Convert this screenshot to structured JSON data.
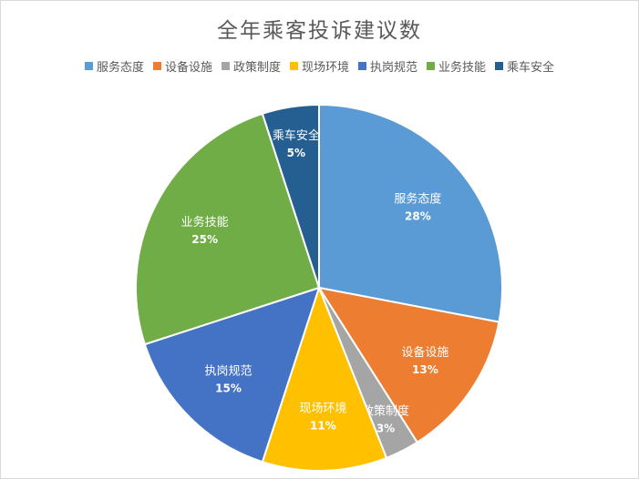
{
  "chart_data": {
    "type": "pie",
    "title": "全年乘客投诉建议数",
    "legend_position": "top",
    "slices": [
      {
        "name": "服务态度",
        "value": 28,
        "label": "28%",
        "color": "#5b9bd5"
      },
      {
        "name": "设备设施",
        "value": 13,
        "label": "13%",
        "color": "#ed7d31"
      },
      {
        "name": "政策制度",
        "value": 3,
        "label": "3%",
        "color": "#a5a5a5"
      },
      {
        "name": "现场环境",
        "value": 11,
        "label": "11%",
        "color": "#ffc000"
      },
      {
        "name": "执岗规范",
        "value": 15,
        "label": "15%",
        "color": "#4472c4"
      },
      {
        "name": "业务技能",
        "value": 25,
        "label": "25%",
        "color": "#70ad47"
      },
      {
        "name": "乘车安全",
        "value": 5,
        "label": "5%",
        "color": "#255e91"
      }
    ]
  }
}
